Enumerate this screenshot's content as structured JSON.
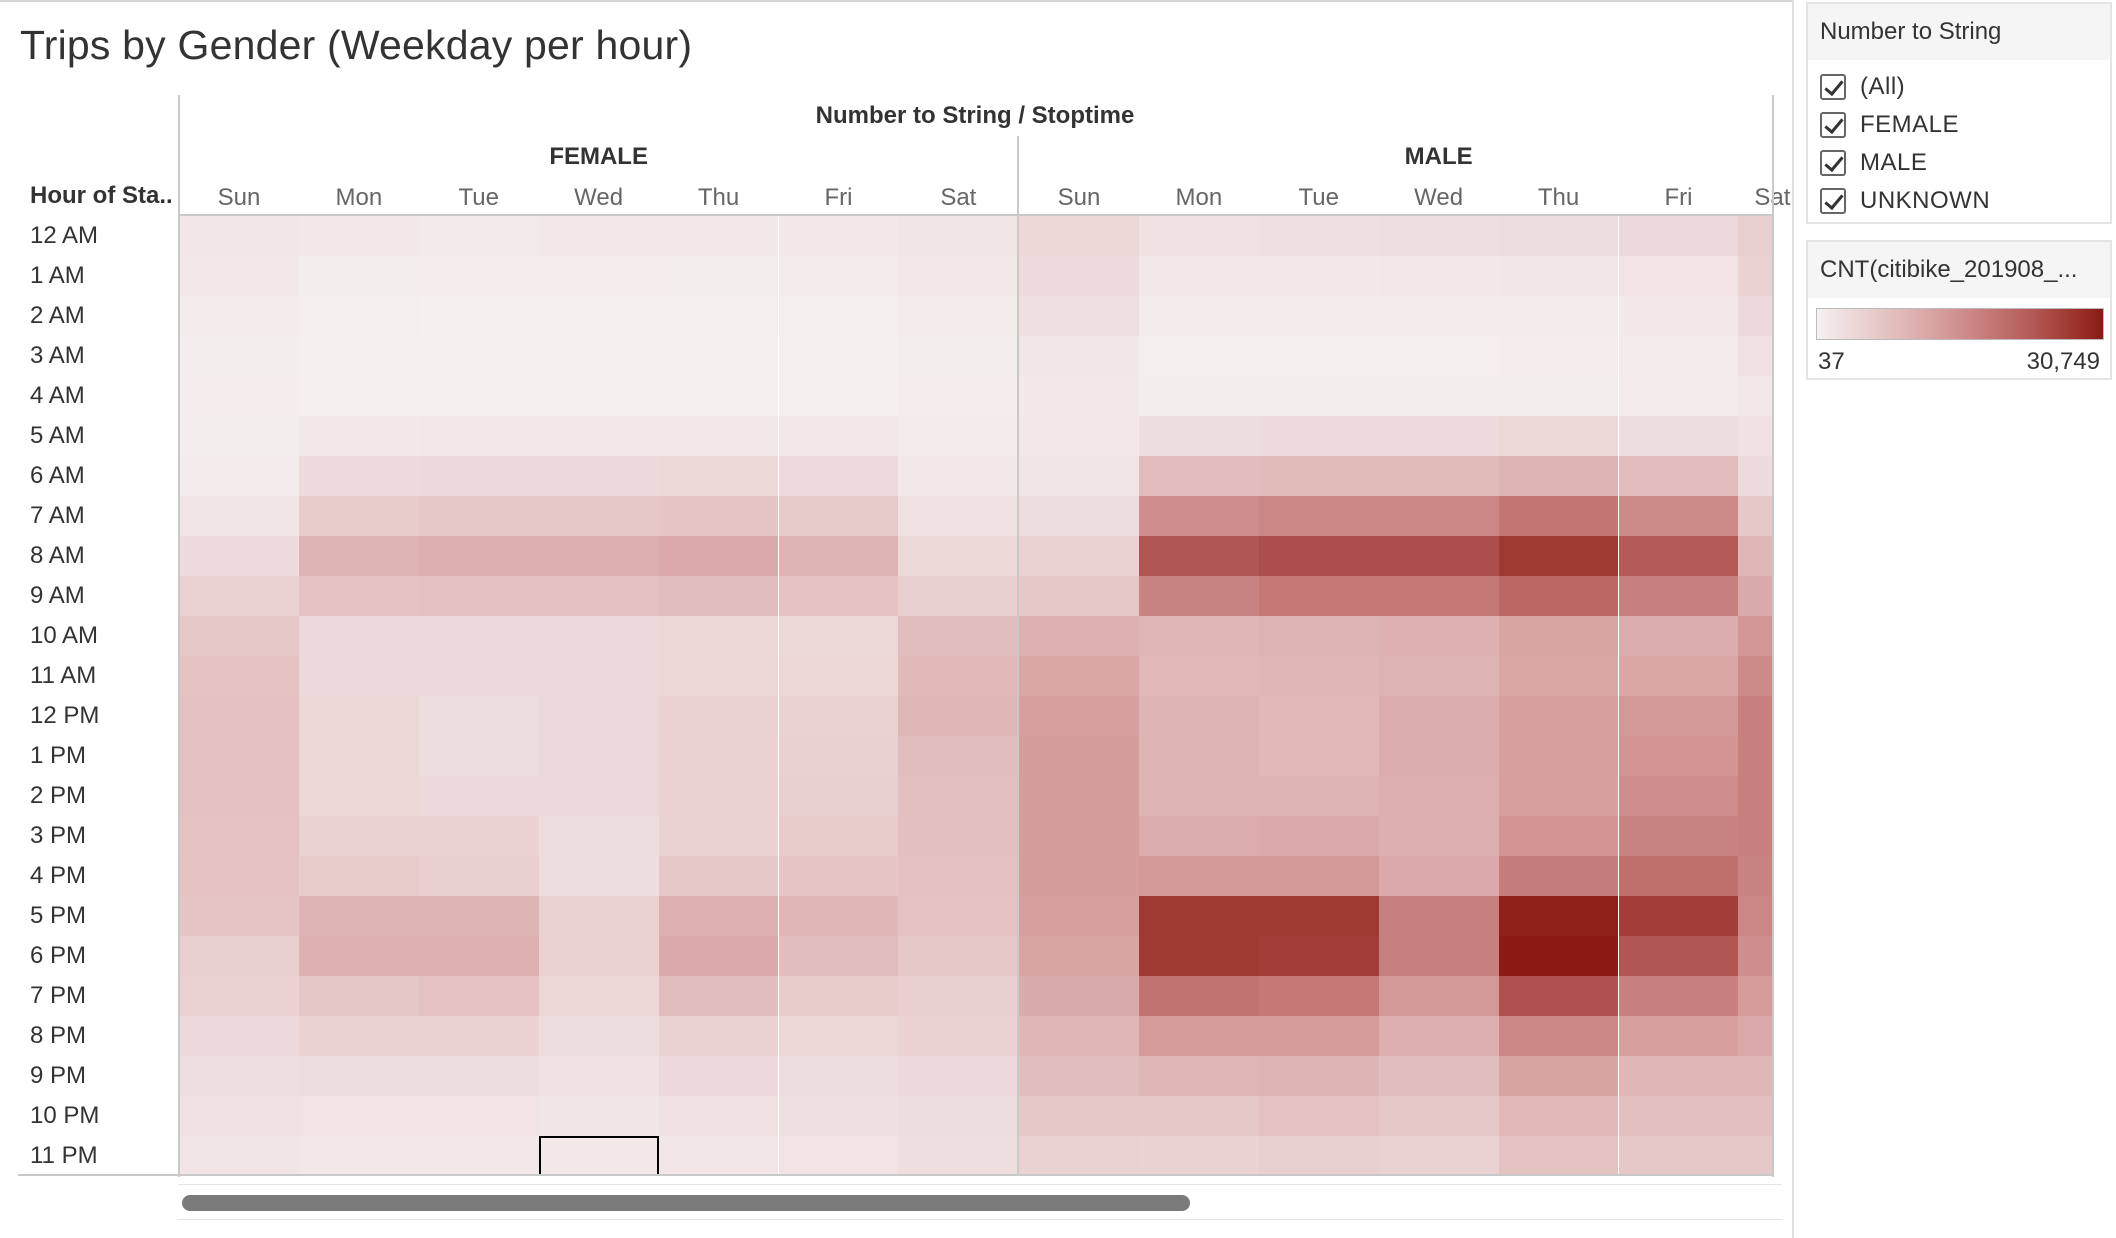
{
  "title": "Trips by Gender (Weekday per hour)",
  "column_header": "Number to String  /  Stoptime",
  "row_header": "Hour of Sta..",
  "filter": {
    "title": "Number to String",
    "options": [
      "(All)",
      "FEMALE",
      "MALE",
      "UNKNOWN"
    ]
  },
  "legend": {
    "title": "CNT(citibike_201908_...",
    "min_label": "37",
    "max_label": "30,749",
    "color_low": "#f6f1f1",
    "color_high": "#8b1a14"
  },
  "chart_data": {
    "type": "heatmap",
    "title": "Trips by Gender (Weekday per hour)",
    "genders": [
      "FEMALE",
      "MALE"
    ],
    "days": {
      "FEMALE": [
        "Sun",
        "Mon",
        "Tue",
        "Wed",
        "Thu",
        "Fri",
        "Sat"
      ],
      "MALE": [
        "Sun",
        "Mon",
        "Tue",
        "Wed",
        "Thu",
        "Fri",
        "Sat"
      ]
    },
    "hours": [
      "12 AM",
      "1 AM",
      "2 AM",
      "3 AM",
      "4 AM",
      "5 AM",
      "6 AM",
      "7 AM",
      "8 AM",
      "9 AM",
      "10 AM",
      "11 AM",
      "12 PM",
      "1 PM",
      "2 PM",
      "3 PM",
      "4 PM",
      "5 PM",
      "6 PM",
      "7 PM",
      "8 PM",
      "9 PM",
      "10 PM",
      "11 PM"
    ],
    "color_range": [
      37,
      30749
    ],
    "values": {
      "FEMALE": [
        [
          1800,
          1300,
          1200,
          1300,
          1300,
          1500,
          2000
        ],
        [
          1300,
          700,
          600,
          600,
          700,
          800,
          1400
        ],
        [
          1000,
          500,
          400,
          400,
          400,
          500,
          1000
        ],
        [
          700,
          300,
          250,
          250,
          300,
          300,
          700
        ],
        [
          600,
          300,
          250,
          250,
          300,
          300,
          600
        ],
        [
          700,
          1300,
          1400,
          1400,
          1500,
          1400,
          800
        ],
        [
          900,
          3500,
          3800,
          3800,
          4000,
          3700,
          1300
        ],
        [
          2000,
          6000,
          6500,
          6500,
          7000,
          6300,
          2500
        ],
        [
          3500,
          10000,
          10800,
          10800,
          11500,
          10000,
          4000
        ],
        [
          5000,
          7300,
          7800,
          7800,
          8300,
          7300,
          5500
        ],
        [
          6500,
          3800,
          3800,
          3800,
          4300,
          4000,
          8300
        ],
        [
          7300,
          3800,
          3800,
          3800,
          4300,
          4300,
          9000
        ],
        [
          7800,
          4300,
          3300,
          3800,
          5000,
          5000,
          9300
        ],
        [
          7800,
          4300,
          3300,
          3800,
          5000,
          5300,
          8300
        ],
        [
          7800,
          4300,
          3800,
          3800,
          5000,
          5500,
          8000
        ],
        [
          7500,
          4800,
          4800,
          3300,
          5000,
          6000,
          8000
        ],
        [
          7300,
          6000,
          5500,
          3300,
          6500,
          7000,
          7800
        ],
        [
          7000,
          9800,
          9800,
          5000,
          10300,
          9300,
          7300
        ],
        [
          5500,
          10300,
          10300,
          5000,
          11500,
          8300,
          6500
        ],
        [
          4800,
          6800,
          7300,
          4300,
          8300,
          6000,
          5500
        ],
        [
          3800,
          4800,
          4800,
          3300,
          5000,
          4300,
          4800
        ],
        [
          3000,
          3300,
          3300,
          2500,
          3800,
          3300,
          3800
        ],
        [
          2500,
          2300,
          2300,
          2000,
          2500,
          2800,
          3300
        ],
        [
          2000,
          1500,
          1500,
          1300,
          1800,
          2300,
          3000
        ]
      ],
      "MALE": [
        [
          4300,
          2500,
          2800,
          3000,
          3300,
          3800,
          5500
        ],
        [
          3500,
          1300,
          1300,
          1500,
          1800,
          2300,
          4800
        ],
        [
          2800,
          800,
          800,
          900,
          1000,
          1300,
          3800
        ],
        [
          1800,
          500,
          500,
          500,
          600,
          800,
          2500
        ],
        [
          1300,
          700,
          700,
          700,
          700,
          800,
          1500
        ],
        [
          1500,
          3300,
          3500,
          3500,
          4000,
          3300,
          2500
        ],
        [
          2000,
          8500,
          8800,
          8800,
          10000,
          8500,
          3500
        ],
        [
          3300,
          15500,
          16500,
          16500,
          19000,
          16000,
          6500
        ],
        [
          5000,
          23500,
          24500,
          24500,
          27000,
          23000,
          9300
        ],
        [
          6500,
          17000,
          18500,
          18500,
          21000,
          17500,
          11300
        ],
        [
          10300,
          9500,
          10000,
          10300,
          12300,
          11000,
          14300
        ],
        [
          12000,
          9000,
          9500,
          10000,
          12000,
          12000,
          16000
        ],
        [
          13000,
          10000,
          9000,
          11000,
          13000,
          14000,
          17500
        ],
        [
          13300,
          10000,
          9000,
          11000,
          13000,
          14500,
          17500
        ],
        [
          13300,
          10000,
          10000,
          10500,
          13000,
          15500,
          17500
        ],
        [
          13300,
          11000,
          11500,
          10500,
          14500,
          17000,
          17500
        ],
        [
          13300,
          14000,
          14000,
          11500,
          18000,
          20000,
          17000
        ],
        [
          13000,
          27000,
          27000,
          17500,
          30000,
          26500,
          16500
        ],
        [
          12300,
          27000,
          26500,
          17500,
          30749,
          23500,
          15500
        ],
        [
          11300,
          19500,
          18500,
          14000,
          24000,
          17500,
          13500
        ],
        [
          9300,
          13500,
          13500,
          10500,
          16500,
          13000,
          11500
        ],
        [
          8300,
          9300,
          9800,
          8300,
          12500,
          9300,
          9300
        ],
        [
          6500,
          6500,
          7500,
          6500,
          9000,
          8000,
          8000
        ],
        [
          5000,
          4800,
          5500,
          5000,
          7500,
          6500,
          6500
        ]
      ]
    },
    "legend_placement": "right",
    "grid": false
  }
}
